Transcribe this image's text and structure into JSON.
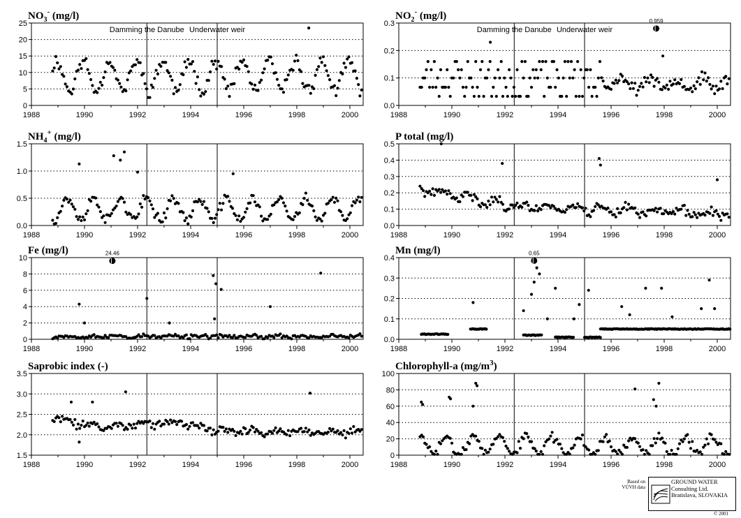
{
  "figure": {
    "credit_small": [
      "Based on",
      "VÚVH data"
    ],
    "logo_lines": [
      "GROUND WATER",
      "Consulting Ltd.",
      "Bratislava, SLOVAKIA"
    ],
    "year": "© 2001"
  },
  "chart_data": [
    {
      "type": "scatter",
      "title": "NO3- (mg/l)",
      "title_parts": [
        "NO",
        "3",
        "-",
        " (mg/l)"
      ],
      "xlim": [
        1988,
        2000.5
      ],
      "x_ticks": [
        "1988",
        "1990",
        "1992",
        "1994",
        "1996",
        "1998",
        "2000"
      ],
      "ylim": [
        0,
        25
      ],
      "y_ticks": [
        "0",
        "5",
        "10",
        "15",
        "20",
        "25"
      ],
      "grid": "horizontal dotted",
      "events": [
        {
          "x": 1992.35,
          "label": "Damming the Danube"
        },
        {
          "x": 1995.0,
          "label": "Underwater weir"
        }
      ],
      "pattern": {
        "seed": 11,
        "base": 9,
        "amp": 4.5,
        "period": 1,
        "phase": 0.7,
        "noise": 2.5,
        "min": 1,
        "max": 24
      },
      "outliers": [
        {
          "x": 1998.45,
          "y": 23.5
        }
      ]
    },
    {
      "type": "scatter",
      "title": "NO2- (mg/l)",
      "title_parts": [
        "NO",
        "2",
        "-",
        " (mg/l)"
      ],
      "xlim": [
        1988,
        2000.5
      ],
      "x_ticks": [
        "1988",
        "1990",
        "1992",
        "1994",
        "1996",
        "1998",
        "2000"
      ],
      "ylim": [
        0,
        0.3
      ],
      "y_ticks": [
        "0.0",
        "0.1",
        "0.2",
        "0.3"
      ],
      "grid": "horizontal dotted",
      "events": [
        {
          "x": 1992.35,
          "label": "Damming the Danube"
        },
        {
          "x": 1995.0,
          "label": "Underwater weir"
        }
      ],
      "pattern": {
        "seed": 23,
        "quantized": [
          0.033,
          0.066,
          0.1,
          0.13,
          0.16
        ],
        "qend": 1995.6,
        "base": 0.08,
        "amp": 0.02,
        "period": 1,
        "phase": 0.2,
        "noise": 0.025,
        "min": 0.01,
        "max": 0.23
      },
      "outliers": [
        {
          "x": 1997.7,
          "y": 0.28,
          "label": "0.959",
          "clipped": true
        },
        {
          "x": 1991.45,
          "y": 0.23
        },
        {
          "x": 1997.95,
          "y": 0.18
        }
      ]
    },
    {
      "type": "scatter",
      "title": "NH4+ (mg/l)",
      "title_parts": [
        "NH",
        "4",
        "+",
        " (mg/l)"
      ],
      "xlim": [
        1988,
        2000.5
      ],
      "x_ticks": [
        "1988",
        "1990",
        "1992",
        "1994",
        "1996",
        "1998",
        "2000"
      ],
      "ylim": [
        0,
        1.5
      ],
      "y_ticks": [
        "0.0",
        "0.5",
        "1.0",
        "1.5"
      ],
      "grid": "horizontal dotted",
      "events": [
        {
          "x": 1992.35
        },
        {
          "x": 1995.0
        }
      ],
      "pattern": {
        "seed": 37,
        "base": 0.3,
        "amp": 0.2,
        "period": 1,
        "phase": 0.1,
        "noise": 0.12,
        "min": 0.03,
        "max": 1.2
      },
      "outliers": [
        {
          "x": 1991.5,
          "y": 1.35
        },
        {
          "x": 1991.1,
          "y": 1.28
        },
        {
          "x": 1989.8,
          "y": 1.13
        },
        {
          "x": 1991.35,
          "y": 1.2
        },
        {
          "x": 1992.0,
          "y": 0.98
        },
        {
          "x": 1995.6,
          "y": 0.95
        }
      ]
    },
    {
      "type": "scatter",
      "title": "P total (mg/l)",
      "title_parts": [
        "P total (mg/l)"
      ],
      "xlim": [
        1988,
        2000.5
      ],
      "x_ticks": [
        "1988",
        "1990",
        "1992",
        "1994",
        "1996",
        "1998",
        "2000"
      ],
      "ylim": [
        0,
        0.5
      ],
      "y_ticks": [
        "0.0",
        "0.1",
        "0.2",
        "0.3",
        "0.4",
        "0.5"
      ],
      "grid": "horizontal dotted",
      "events": [
        {
          "x": 1992.35
        },
        {
          "x": 1995.0
        }
      ],
      "pattern": {
        "seed": 41,
        "trend": [
          [
            1988.8,
            0.22
          ],
          [
            1992.3,
            0.12
          ],
          [
            1995.5,
            0.1
          ],
          [
            2000.5,
            0.07
          ]
        ],
        "amp": 0.02,
        "period": 1,
        "phase": 0.4,
        "noise": 0.035,
        "min": 0.02,
        "max": 0.36
      },
      "outliers": [
        {
          "x": 1995.55,
          "y": 0.41
        },
        {
          "x": 1995.6,
          "y": 0.37
        },
        {
          "x": 1989.6,
          "y": 0.5
        },
        {
          "x": 1991.9,
          "y": 0.38
        },
        {
          "x": 2000.0,
          "y": 0.28
        }
      ]
    },
    {
      "type": "scatter",
      "title": "Fe (mg/l)",
      "title_parts": [
        "Fe (mg/l)"
      ],
      "xlim": [
        1988,
        2000.5
      ],
      "x_ticks": [
        "1988",
        "1990",
        "1992",
        "1994",
        "1996",
        "1998",
        "2000"
      ],
      "ylim": [
        0,
        10
      ],
      "y_ticks": [
        "0",
        "2",
        "4",
        "6",
        "8",
        "10"
      ],
      "grid": "horizontal dotted",
      "events": [
        {
          "x": 1992.35
        },
        {
          "x": 1995.0
        }
      ],
      "pattern": {
        "seed": 53,
        "base": 0.35,
        "amp": 0.1,
        "period": 1,
        "phase": 0,
        "noise": 0.3,
        "min": 0.05,
        "max": 2
      },
      "outliers": [
        {
          "x": 1991.05,
          "y": 9.6,
          "label": "24.46",
          "clipped": true
        },
        {
          "x": 1992.35,
          "y": 5
        },
        {
          "x": 1994.85,
          "y": 7.8
        },
        {
          "x": 1994.95,
          "y": 6.8
        },
        {
          "x": 1995.15,
          "y": 6.1
        },
        {
          "x": 1998.9,
          "y": 8.1
        },
        {
          "x": 1989.8,
          "y": 4.3
        },
        {
          "x": 1997.0,
          "y": 4
        },
        {
          "x": 1990.0,
          "y": 2
        },
        {
          "x": 1993.2,
          "y": 2
        },
        {
          "x": 1994.9,
          "y": 2.5
        }
      ]
    },
    {
      "type": "scatter",
      "title": "Mn (mg/l)",
      "title_parts": [
        "Mn (mg/l)"
      ],
      "xlim": [
        1988,
        2000.5
      ],
      "x_ticks": [
        "1988",
        "1990",
        "1992",
        "1994",
        "1996",
        "1998",
        "2000"
      ],
      "ylim": [
        0,
        0.4
      ],
      "y_ticks": [
        "0.0",
        "0.1",
        "0.2",
        "0.3",
        "0.4"
      ],
      "grid": "horizontal dotted",
      "events": [
        {
          "x": 1992.35
        },
        {
          "x": 1995.0
        }
      ],
      "pattern": {
        "seed": 61,
        "segments": [
          [
            1988.85,
            1989.85,
            0.025
          ],
          [
            1990.7,
            1991.3,
            0.05
          ],
          [
            1992.7,
            1993.4,
            0.02
          ],
          [
            1993.9,
            1994.6,
            0.01
          ],
          [
            1995.0,
            1995.6,
            0.01
          ],
          [
            1995.6,
            2000.5,
            0.05
          ]
        ],
        "noise": 0.004
      },
      "outliers": [
        {
          "x": 1993.1,
          "y": 0.385,
          "label": "0.65",
          "clipped": true
        },
        {
          "x": 1993.2,
          "y": 0.35
        },
        {
          "x": 1993.1,
          "y": 0.28
        },
        {
          "x": 1993.3,
          "y": 0.32
        },
        {
          "x": 1993.0,
          "y": 0.22
        },
        {
          "x": 1993.9,
          "y": 0.25
        },
        {
          "x": 1995.15,
          "y": 0.24
        },
        {
          "x": 1997.3,
          "y": 0.25
        },
        {
          "x": 1997.9,
          "y": 0.25
        },
        {
          "x": 1999.7,
          "y": 0.29
        },
        {
          "x": 1990.8,
          "y": 0.18
        },
        {
          "x": 1994.8,
          "y": 0.17
        },
        {
          "x": 1996.4,
          "y": 0.16
        },
        {
          "x": 1999.4,
          "y": 0.15
        },
        {
          "x": 1999.9,
          "y": 0.15
        },
        {
          "x": 1996.7,
          "y": 0.12
        },
        {
          "x": 1998.3,
          "y": 0.11
        },
        {
          "x": 1992.7,
          "y": 0.14
        },
        {
          "x": 1994.6,
          "y": 0.1
        },
        {
          "x": 1993.6,
          "y": 0.1
        }
      ]
    },
    {
      "type": "scatter",
      "title": "Saprobic index (-)",
      "title_parts": [
        "Saprobic index (-)"
      ],
      "xlim": [
        1988,
        2000.5
      ],
      "x_ticks": [
        "1988",
        "1990",
        "1992",
        "1994",
        "1996",
        "1998",
        "2000"
      ],
      "ylim": [
        1.5,
        3.5
      ],
      "y_ticks": [
        "1.5",
        "2.0",
        "2.5",
        "3.0",
        "3.5"
      ],
      "grid": "horizontal dotted",
      "events": [
        {
          "x": 1992.35
        },
        {
          "x": 1995.0
        }
      ],
      "pattern": {
        "seed": 71,
        "trend": [
          [
            1988.8,
            2.4
          ],
          [
            1990.5,
            2.2
          ],
          [
            1993.5,
            2.3
          ],
          [
            1995.0,
            2.1
          ],
          [
            2000.5,
            2.05
          ]
        ],
        "amp": 0.05,
        "period": 1,
        "phase": 0,
        "noise": 0.12,
        "min": 1.8,
        "max": 2.9
      },
      "outliers": [
        {
          "x": 1991.55,
          "y": 3.05
        },
        {
          "x": 1998.5,
          "y": 3.02
        },
        {
          "x": 1989.5,
          "y": 2.8
        },
        {
          "x": 1990.3,
          "y": 2.8
        },
        {
          "x": 1989.8,
          "y": 1.82
        }
      ]
    },
    {
      "type": "scatter",
      "title": "Chlorophyll-a (mg/m3)",
      "title_parts": [
        "Chlorophyll-a (mg/m",
        "",
        "3",
        ")"
      ],
      "xlim": [
        1988,
        2000.5
      ],
      "x_ticks": [
        "1988",
        "1990",
        "1992",
        "1994",
        "1996",
        "1998",
        "2000"
      ],
      "ylim": [
        0,
        100
      ],
      "y_ticks": [
        "0",
        "20",
        "40",
        "60",
        "80",
        "100"
      ],
      "grid": "horizontal dotted",
      "events": [
        {
          "x": 1992.35
        },
        {
          "x": 1995.0
        }
      ],
      "pattern": {
        "seed": 83,
        "base": 12,
        "amp": 10,
        "period": 1,
        "phase": 0.55,
        "noise": 8,
        "min": 1,
        "max": 45
      },
      "outliers": [
        {
          "x": 1990.9,
          "y": 88
        },
        {
          "x": 1990.95,
          "y": 85
        },
        {
          "x": 1997.8,
          "y": 88
        },
        {
          "x": 1996.9,
          "y": 81
        },
        {
          "x": 1997.6,
          "y": 68
        },
        {
          "x": 1989.9,
          "y": 71
        },
        {
          "x": 1989.95,
          "y": 69
        },
        {
          "x": 1988.85,
          "y": 65
        },
        {
          "x": 1988.9,
          "y": 62
        },
        {
          "x": 1990.8,
          "y": 60
        },
        {
          "x": 1997.7,
          "y": 60
        }
      ]
    }
  ]
}
